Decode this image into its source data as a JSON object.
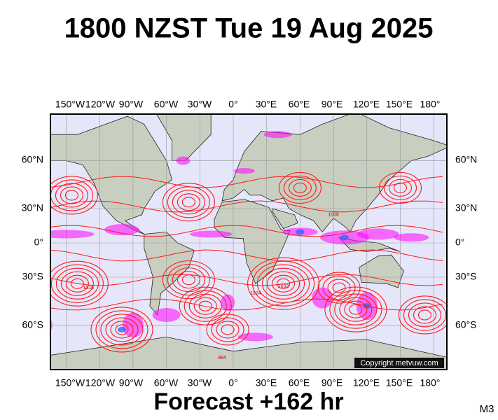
{
  "title": "1800 NZST Tue 19 Aug 2025",
  "lon_labels": [
    "150°W",
    "120°W",
    "90°W",
    "60°W",
    "30°W",
    "0°",
    "30°E",
    "60°E",
    "90°E",
    "120°E",
    "150°E",
    "180°"
  ],
  "lat_labels": [
    "60°N",
    "30°N",
    "0°",
    "30°S",
    "60°S"
  ],
  "isobar_labels": [
    "1016",
    "1024",
    "1032",
    "1008",
    "984"
  ],
  "copyright": "Copyright metvuw.com",
  "forecast": "Forecast +162 hr",
  "model": "M3"
}
